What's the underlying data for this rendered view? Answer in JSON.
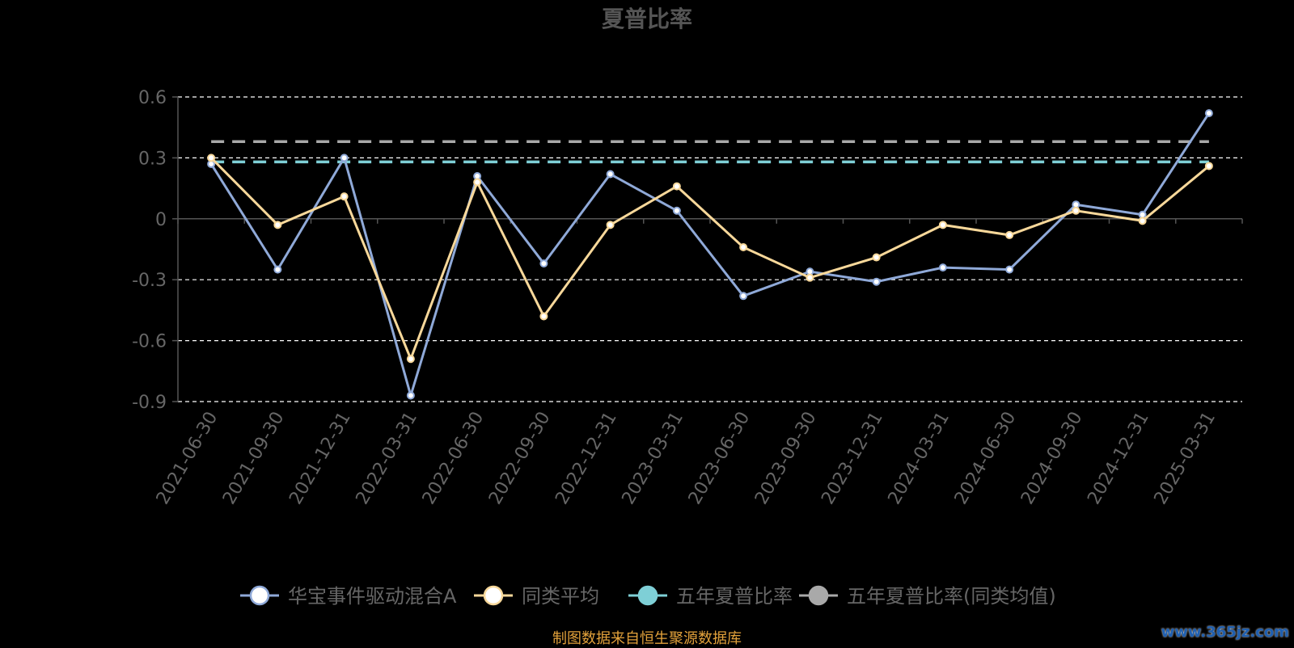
{
  "chart_data": {
    "type": "line",
    "title": "夏普比率",
    "categories": [
      "2021-06-30",
      "2021-09-30",
      "2021-12-31",
      "2022-03-31",
      "2022-06-30",
      "2022-09-30",
      "2022-12-31",
      "2023-03-31",
      "2023-06-30",
      "2023-09-30",
      "2023-12-31",
      "2024-03-31",
      "2024-06-30",
      "2024-09-30",
      "2024-12-31",
      "2025-03-31"
    ],
    "ylim": [
      -0.9,
      0.6
    ],
    "yticks": [
      "0.6",
      "0.3",
      "0",
      "-0.3",
      "-0.6",
      "-0.9"
    ],
    "ytick_values": [
      0.6,
      0.3,
      0,
      -0.3,
      -0.6,
      -0.9
    ],
    "grid": true,
    "legend_position": "bottom",
    "series": [
      {
        "name": "华宝事件驱动混合A",
        "color": "#8fa9d8",
        "values": [
          0.27,
          -0.25,
          0.3,
          -0.87,
          0.21,
          -0.22,
          0.22,
          0.04,
          -0.38,
          -0.26,
          -0.31,
          -0.24,
          -0.25,
          0.07,
          0.02,
          0.52
        ]
      },
      {
        "name": "同类平均",
        "color": "#f8d89a",
        "values": [
          0.3,
          -0.03,
          0.11,
          -0.69,
          0.18,
          -0.48,
          -0.03,
          0.16,
          -0.14,
          -0.29,
          -0.19,
          -0.03,
          -0.08,
          0.04,
          -0.01,
          0.26
        ]
      },
      {
        "name": "五年夏普比率",
        "color": "#7ecfd6",
        "value": 0.28
      },
      {
        "name": "五年夏普比率(同类均值)",
        "color": "#a9a9a9",
        "value": 0.38
      }
    ]
  },
  "footer": {
    "source": "制图数据来自恒生聚源数据库",
    "watermark": "www.365jz.com"
  }
}
